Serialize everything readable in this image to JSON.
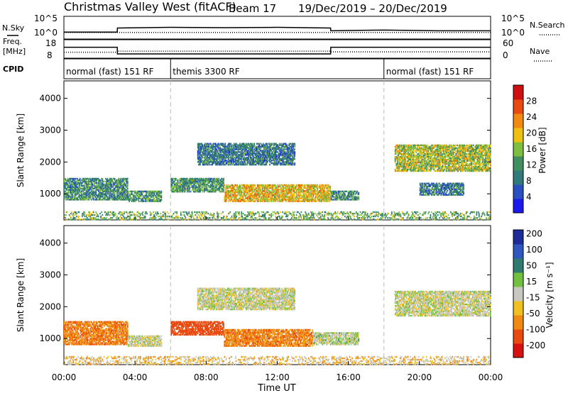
{
  "header": {
    "title": "Christmas Valley West (fitACF)",
    "beam": "Beam 17",
    "dates": "19/Dec/2019 – 20/Dec/2019"
  },
  "chart_data": [
    {
      "type": "line",
      "panel": "noise",
      "left_label": "N.Sky",
      "right_label": "N.Search",
      "yticks_left": [
        "10^5",
        "10^0"
      ],
      "yticks_right": [
        "10^5",
        "10^0"
      ],
      "xlim_hours": [
        0,
        24
      ],
      "series": [
        {
          "name": "N.Sky",
          "style": "solid",
          "x": [
            0,
            3,
            3.01,
            6,
            9,
            12,
            15,
            15.01,
            18,
            21,
            24
          ],
          "y": [
            1.2,
            1.2,
            2.4,
            2.6,
            2.5,
            2.6,
            2.4,
            1.6,
            1.8,
            1.6,
            1.6
          ]
        },
        {
          "name": "N.Search",
          "style": "dotted",
          "x": [
            0,
            6,
            12,
            18,
            24
          ],
          "y": [
            1.1,
            1.1,
            1.1,
            1.1,
            1.1
          ]
        }
      ]
    },
    {
      "type": "line",
      "panel": "frequency",
      "left_label": "Freq. [MHz]",
      "right_label": "Nave",
      "yticks_left": [
        "18",
        "8"
      ],
      "yticks_right": [
        "60",
        "0"
      ],
      "series": [
        {
          "name": "Freq",
          "style": "solid",
          "x": [
            0,
            3,
            3.01,
            15,
            15.01,
            24
          ],
          "y": [
            14.5,
            14.5,
            9.6,
            9.6,
            14.5,
            14.5
          ]
        },
        {
          "name": "Nave",
          "style": "dotted",
          "x": [
            0,
            3,
            3.01,
            15,
            15.01,
            24
          ],
          "y": [
            10.8,
            10.8,
            11.6,
            11.6,
            11.1,
            11.1
          ]
        }
      ]
    },
    {
      "type": "table",
      "panel": "cpid",
      "label": "CPID",
      "segments": [
        {
          "start": 0,
          "end": 6,
          "label": "normal (fast) 151 RF"
        },
        {
          "start": 6,
          "end": 18,
          "label": "themis 3300 RF"
        },
        {
          "start": 18,
          "end": 24,
          "label": "normal (fast) 151 RF"
        }
      ]
    },
    {
      "type": "heatmap",
      "panel": "power",
      "ylabel": "Slant Range [km]",
      "ylim": [
        180,
        4550
      ],
      "yticks": [
        1000,
        2000,
        3000,
        4000
      ],
      "xlim_hours": [
        0,
        24
      ],
      "colorbar": {
        "label": "Power [dB]",
        "ticks": [
          4,
          8,
          12,
          16,
          20,
          24,
          28
        ],
        "range": [
          0,
          32
        ]
      },
      "regions": [
        {
          "t0": 0.0,
          "t1": 3.6,
          "r0": 800,
          "r1": 1500,
          "mean": 11
        },
        {
          "t0": 3.6,
          "t1": 5.5,
          "r0": 750,
          "r1": 1100,
          "mean": 12
        },
        {
          "t0": 6.0,
          "t1": 9.0,
          "r0": 1050,
          "r1": 1500,
          "mean": 12
        },
        {
          "t0": 9.0,
          "t1": 15.0,
          "r0": 750,
          "r1": 1300,
          "mean": 20
        },
        {
          "t0": 15.0,
          "t1": 16.6,
          "r0": 800,
          "r1": 1100,
          "mean": 11
        },
        {
          "t0": 7.5,
          "t1": 13.0,
          "r0": 1900,
          "r1": 2600,
          "mean": 9
        },
        {
          "t0": 18.6,
          "t1": 24.0,
          "r0": 1700,
          "r1": 2550,
          "mean": 17
        },
        {
          "t0": 20.0,
          "t1": 22.5,
          "r0": 950,
          "r1": 1350,
          "mean": 9
        },
        {
          "t0": 0.0,
          "t1": 24.0,
          "r0": 180,
          "r1": 450,
          "mean": 14
        }
      ]
    },
    {
      "type": "heatmap",
      "panel": "velocity",
      "ylabel": "Slant Range [km]",
      "ylim": [
        180,
        4550
      ],
      "yticks": [
        1000,
        2000,
        3000,
        4000
      ],
      "xlim_hours": [
        0,
        24
      ],
      "xticks": [
        "00:00",
        "04:00",
        "08:00",
        "12:00",
        "16:00",
        "20:00",
        "00:00"
      ],
      "xlabel": "Time UT",
      "colorbar": {
        "label": "Velocity [m s⁻¹]",
        "ticks": [
          200,
          100,
          50,
          15,
          -15,
          -50,
          -100,
          -200
        ]
      },
      "regions": [
        {
          "t0": 0.0,
          "t1": 3.6,
          "r0": 800,
          "r1": 1550,
          "mean": -60
        },
        {
          "t0": 3.6,
          "t1": 5.5,
          "r0": 750,
          "r1": 1100,
          "mean": 0
        },
        {
          "t0": 6.0,
          "t1": 9.0,
          "r0": 1100,
          "r1": 1550,
          "mean": -120
        },
        {
          "t0": 9.0,
          "t1": 14.0,
          "r0": 750,
          "r1": 1300,
          "mean": -60
        },
        {
          "t0": 14.0,
          "t1": 16.6,
          "r0": 800,
          "r1": 1200,
          "mean": 5
        },
        {
          "t0": 7.5,
          "t1": 13.0,
          "r0": 1900,
          "r1": 2600,
          "mean": 0
        },
        {
          "t0": 18.6,
          "t1": 24.0,
          "r0": 1700,
          "r1": 2500,
          "mean": 0
        },
        {
          "t0": 0.0,
          "t1": 24.0,
          "r0": 180,
          "r1": 450,
          "mean": -20
        }
      ]
    }
  ]
}
